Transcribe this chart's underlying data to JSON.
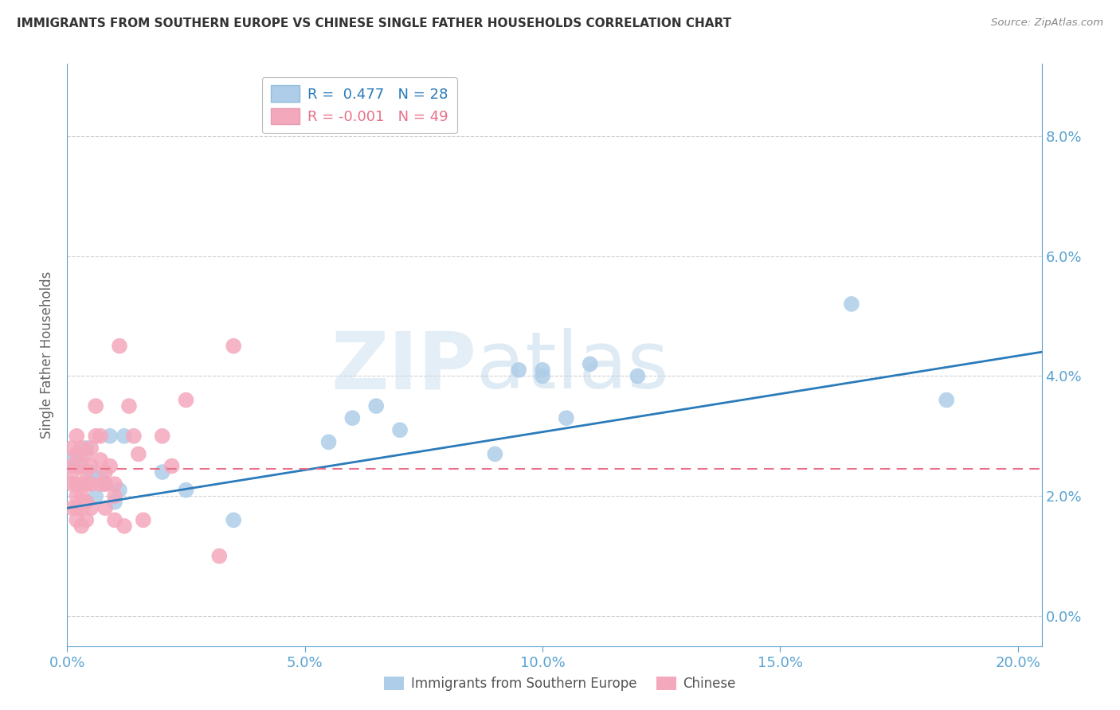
{
  "title": "IMMIGRANTS FROM SOUTHERN EUROPE VS CHINESE SINGLE FATHER HOUSEHOLDS CORRELATION CHART",
  "source": "Source: ZipAtlas.com",
  "ylabel": "Single Father Households",
  "legend_blue_label": "Immigrants from Southern Europe",
  "legend_pink_label": "Chinese",
  "blue_R": "0.477",
  "blue_N": "28",
  "pink_R": "-0.001",
  "pink_N": "49",
  "xlim": [
    0.0,
    0.205
  ],
  "ylim": [
    -0.005,
    0.092
  ],
  "yticks": [
    0.0,
    0.02,
    0.04,
    0.06,
    0.08
  ],
  "xticks": [
    0.0,
    0.05,
    0.1,
    0.15,
    0.2
  ],
  "blue_points_x": [
    0.001,
    0.002,
    0.003,
    0.004,
    0.005,
    0.006,
    0.007,
    0.008,
    0.009,
    0.01,
    0.011,
    0.012,
    0.02,
    0.025,
    0.035,
    0.055,
    0.06,
    0.065,
    0.07,
    0.09,
    0.095,
    0.1,
    0.1,
    0.105,
    0.11,
    0.12,
    0.165,
    0.185
  ],
  "blue_points_y": [
    0.026,
    0.025,
    0.027,
    0.028,
    0.024,
    0.02,
    0.023,
    0.022,
    0.03,
    0.019,
    0.021,
    0.03,
    0.024,
    0.021,
    0.016,
    0.029,
    0.033,
    0.035,
    0.031,
    0.027,
    0.041,
    0.04,
    0.041,
    0.033,
    0.042,
    0.04,
    0.052,
    0.036
  ],
  "pink_points_x": [
    0.001,
    0.001,
    0.001,
    0.001,
    0.001,
    0.002,
    0.002,
    0.002,
    0.002,
    0.002,
    0.002,
    0.003,
    0.003,
    0.003,
    0.003,
    0.003,
    0.003,
    0.004,
    0.004,
    0.004,
    0.004,
    0.004,
    0.005,
    0.005,
    0.005,
    0.005,
    0.006,
    0.006,
    0.007,
    0.007,
    0.007,
    0.008,
    0.008,
    0.008,
    0.009,
    0.01,
    0.01,
    0.01,
    0.011,
    0.012,
    0.013,
    0.014,
    0.015,
    0.016,
    0.02,
    0.022,
    0.025,
    0.032,
    0.035
  ],
  "pink_points_y": [
    0.025,
    0.028,
    0.024,
    0.022,
    0.018,
    0.027,
    0.03,
    0.022,
    0.02,
    0.018,
    0.016,
    0.028,
    0.025,
    0.022,
    0.02,
    0.018,
    0.015,
    0.027,
    0.024,
    0.022,
    0.019,
    0.016,
    0.028,
    0.025,
    0.022,
    0.018,
    0.035,
    0.03,
    0.03,
    0.026,
    0.022,
    0.024,
    0.022,
    0.018,
    0.025,
    0.022,
    0.02,
    0.016,
    0.045,
    0.015,
    0.035,
    0.03,
    0.027,
    0.016,
    0.03,
    0.025,
    0.036,
    0.01,
    0.045
  ],
  "blue_line_x": [
    0.0,
    0.205
  ],
  "blue_line_y": [
    0.018,
    0.044
  ],
  "pink_line_x": [
    0.0,
    0.205
  ],
  "pink_line_y": [
    0.0245,
    0.0245
  ],
  "watermark_text": "ZIPatlas",
  "bg_color": "#ffffff",
  "blue_dot_color": "#aecde8",
  "pink_dot_color": "#f4a8bc",
  "blue_line_color": "#2b7bba",
  "pink_line_color": "#e8718a",
  "right_axis_color": "#5ba3d0",
  "grid_color": "#cccccc",
  "title_color": "#333333",
  "source_color": "#888888",
  "ylabel_color": "#666666",
  "tick_label_color": "#5ba3d0"
}
